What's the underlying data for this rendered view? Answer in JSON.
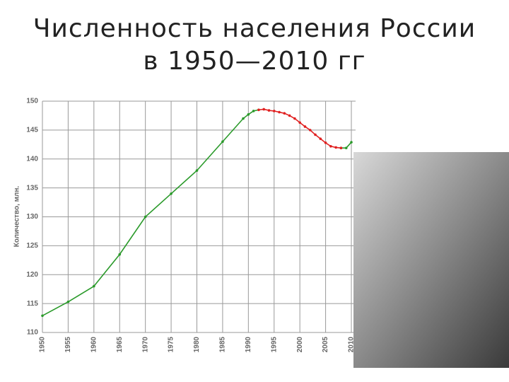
{
  "chart_data": {
    "type": "line",
    "title": "Численность населения России в 1950—2010 гг",
    "y_label": "Количество, млн.",
    "x": [
      1950,
      1955,
      1960,
      1965,
      1970,
      1975,
      1980,
      1985,
      1989,
      1990,
      1991,
      1992,
      1993,
      1994,
      1995,
      1996,
      1997,
      1998,
      1999,
      2000,
      2001,
      2002,
      2003,
      2004,
      2005,
      2006,
      2007,
      2008,
      2009,
      2010
    ],
    "series": [
      {
        "color": "#2a9a2a",
        "values": [
          112.9,
          115.3,
          118.0,
          123.5,
          130.0,
          134.0,
          138.0,
          143.0,
          147.0,
          147.7,
          148.3,
          148.5,
          null,
          null,
          null,
          null,
          null,
          null,
          null,
          null,
          null,
          null,
          null,
          null,
          null,
          null,
          null,
          141.9,
          141.9,
          142.9
        ]
      },
      {
        "color": "#e02020",
        "values": [
          null,
          null,
          null,
          null,
          null,
          null,
          null,
          null,
          null,
          null,
          null,
          148.5,
          148.6,
          148.4,
          148.3,
          148.1,
          147.9,
          147.5,
          147.0,
          146.3,
          145.6,
          145.0,
          144.2,
          143.5,
          142.8,
          142.2,
          142.0,
          141.9,
          null,
          null
        ]
      }
    ],
    "xlim": [
      1950,
      2010
    ],
    "ylim": [
      110,
      150
    ],
    "xticks": [
      1950,
      1955,
      1960,
      1965,
      1970,
      1975,
      1980,
      1985,
      1990,
      1995,
      2000,
      2005,
      2010
    ],
    "yticks": [
      110,
      115,
      120,
      125,
      130,
      135,
      140,
      145,
      150
    ],
    "grid": true
  }
}
